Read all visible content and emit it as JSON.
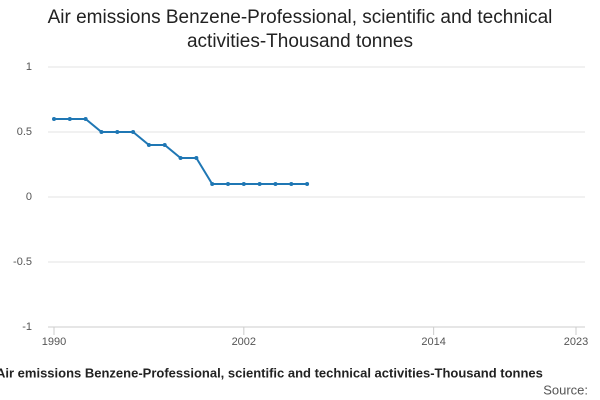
{
  "chart_data": {
    "type": "line",
    "title": "Air emissions Benzene-Professional, scientific and technical activities-Thousand tonnes",
    "x_label": "Air emissions Benzene-Professional, scientific and technical activities-Thousand tonnes",
    "source": "Source:",
    "x": [
      1990,
      1991,
      1992,
      1993,
      1994,
      1995,
      1996,
      1997,
      1998,
      1999,
      2000,
      2001,
      2002,
      2003,
      2004,
      2005,
      2006
    ],
    "series": [
      {
        "name": "Air emissions Benzene-Professional, scientific and technical activities",
        "color": "#1f77b4",
        "values": [
          0.6,
          0.6,
          0.6,
          0.5,
          0.5,
          0.5,
          0.4,
          0.4,
          0.3,
          0.3,
          0.1,
          0.1,
          0.1,
          0.1,
          0.1,
          0.1,
          0.1
        ]
      }
    ],
    "xlim": [
      1990,
      2023
    ],
    "xticks": [
      1990,
      2002,
      2014,
      2023
    ],
    "ylim": [
      -1,
      1
    ],
    "yticks": [
      -1,
      -0.5,
      0,
      0.5,
      1
    ],
    "grid": true
  }
}
